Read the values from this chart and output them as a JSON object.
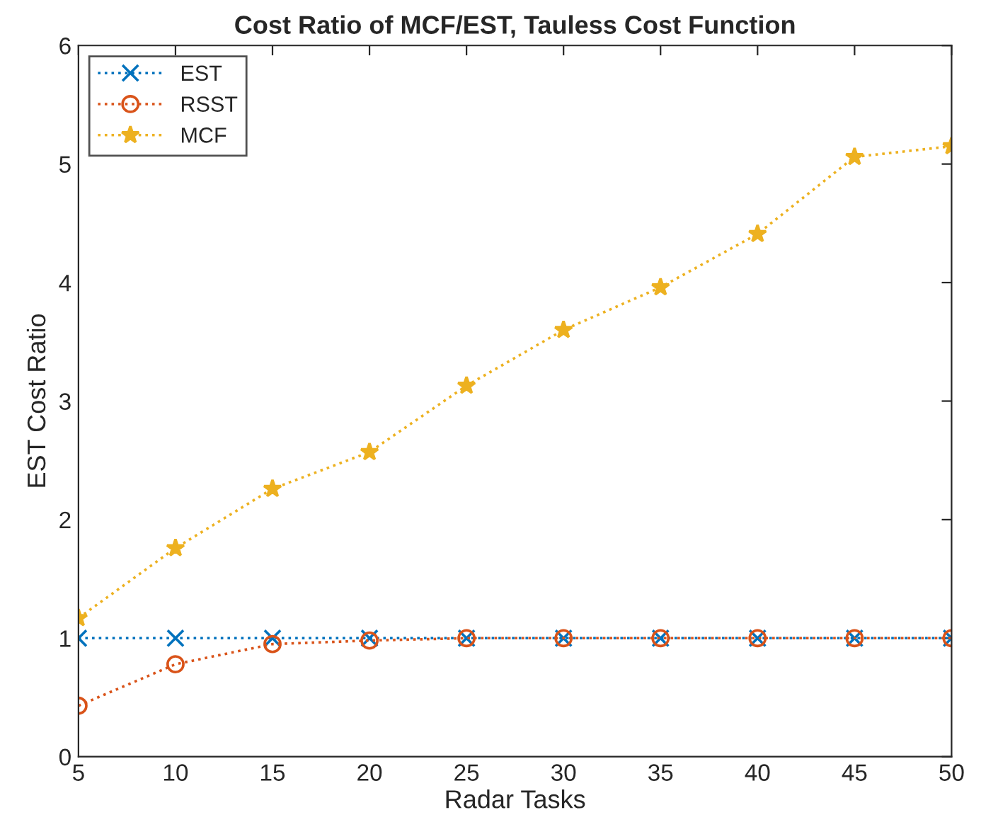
{
  "chart_data": {
    "type": "line",
    "title": "Cost Ratio of MCF/EST, Tauless Cost Function",
    "xlabel": "Radar Tasks",
    "ylabel": "EST Cost Ratio",
    "x": [
      5,
      10,
      15,
      20,
      25,
      30,
      35,
      40,
      45,
      50
    ],
    "series": [
      {
        "name": "EST",
        "color": "#0072bd",
        "marker": "cross",
        "values": [
          1,
          1,
          1,
          1,
          1,
          1,
          1,
          1,
          1,
          1
        ]
      },
      {
        "name": "RSST",
        "color": "#d95319",
        "marker": "circle",
        "values": [
          0.43,
          0.78,
          0.95,
          0.98,
          1,
          1,
          1,
          1,
          1,
          1
        ]
      },
      {
        "name": "MCF",
        "color": "#edb120",
        "marker": "star",
        "values": [
          1.17,
          1.76,
          2.26,
          2.57,
          3.13,
          3.6,
          3.96,
          4.41,
          5.06,
          5.15
        ]
      }
    ],
    "xlim": [
      5,
      50
    ],
    "xticks": [
      5,
      10,
      15,
      20,
      25,
      30,
      35,
      40,
      45,
      50
    ],
    "ylim": [
      0,
      6
    ],
    "yticks": [
      0,
      1,
      2,
      3,
      4,
      5,
      6
    ],
    "line_style": "dotted",
    "legend": "top left",
    "grid": false
  }
}
